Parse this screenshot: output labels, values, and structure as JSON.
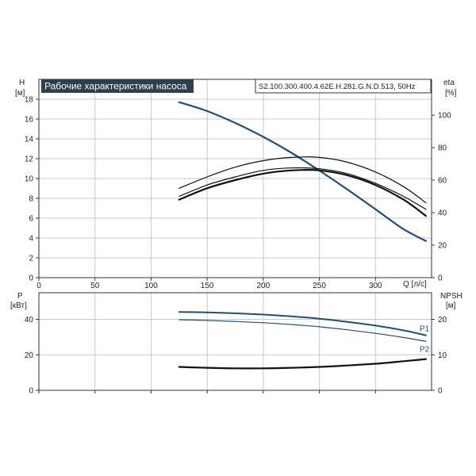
{
  "chart_data": [
    {
      "type": "line",
      "title": "Рабочие характеристики насоса",
      "model_label": "S2.100.300.400.4.62E.H.281.G.N.D.513, 50Hz",
      "left_axis": {
        "label": "H",
        "unit": "[м]",
        "range": [
          0,
          20
        ],
        "ticks": [
          0,
          2,
          4,
          6,
          8,
          10,
          12,
          14,
          16,
          18
        ]
      },
      "right_axis": {
        "label": "eta",
        "unit": "[%]",
        "range": [
          0,
          122
        ],
        "ticks": [
          0,
          20,
          40,
          60,
          80,
          100
        ]
      },
      "x_axis": {
        "label": "Q [л/с]",
        "range": [
          0,
          350
        ],
        "ticks": [
          0,
          50,
          100,
          150,
          200,
          250,
          300
        ]
      },
      "grid": true,
      "series": [
        {
          "axis": "left",
          "color": "#1f4e79",
          "width": 2.2,
          "x": [
            125,
            150,
            175,
            200,
            225,
            250,
            275,
            300,
            325,
            345
          ],
          "y": [
            17.7,
            16.8,
            15.6,
            14.2,
            12.6,
            10.8,
            8.9,
            6.9,
            4.9,
            3.7
          ]
        },
        {
          "axis": "right",
          "color": "#111111",
          "width": 1.2,
          "x": [
            125,
            150,
            175,
            200,
            225,
            250,
            275,
            300,
            325,
            345
          ],
          "y": [
            55,
            62,
            68,
            72,
            74,
            74,
            71,
            65,
            56,
            46
          ]
        },
        {
          "axis": "right",
          "color": "#111111",
          "width": 1.2,
          "x": [
            125,
            150,
            175,
            200,
            225,
            250,
            275,
            300,
            325,
            345
          ],
          "y": [
            50,
            57,
            62,
            66,
            67.5,
            67,
            64,
            58,
            50,
            42
          ]
        },
        {
          "axis": "right",
          "color": "#111111",
          "width": 2.2,
          "x": [
            125,
            150,
            175,
            200,
            225,
            250,
            275,
            300,
            325,
            345
          ],
          "y": [
            48,
            55,
            60,
            64,
            66,
            66,
            63,
            57,
            48,
            38
          ]
        }
      ]
    },
    {
      "type": "line",
      "left_axis": {
        "label": "P",
        "unit": "[кВт]",
        "range": [
          0,
          55
        ],
        "ticks": [
          0,
          20,
          40
        ]
      },
      "right_axis": {
        "label": "NPSH",
        "unit": "[м]",
        "range": [
          0,
          27.5
        ],
        "ticks": [
          0,
          10,
          20
        ]
      },
      "x_axis": {
        "range": [
          0,
          350
        ],
        "ticks": [
          0,
          50,
          100,
          150,
          200,
          250,
          300
        ]
      },
      "grid": true,
      "series": [
        {
          "name": "P1",
          "axis": "left",
          "color": "#1f4e79",
          "width": 2.0,
          "x": [
            125,
            150,
            175,
            200,
            225,
            250,
            275,
            300,
            325,
            345
          ],
          "y": [
            44.2,
            43.9,
            43.4,
            42.7,
            41.7,
            40.4,
            38.6,
            36.5,
            33.8,
            31.0
          ]
        },
        {
          "name": "P2",
          "axis": "left",
          "color": "#1f4e79",
          "width": 1.2,
          "x": [
            125,
            150,
            175,
            200,
            225,
            250,
            275,
            300,
            325,
            345
          ],
          "y": [
            39.8,
            39.4,
            38.8,
            38.1,
            37.1,
            35.8,
            34.1,
            32.1,
            29.8,
            27.6
          ]
        },
        {
          "axis": "right",
          "color": "#111111",
          "width": 2.2,
          "x": [
            125,
            150,
            175,
            200,
            225,
            250,
            275,
            300,
            325,
            345
          ],
          "y": [
            6.6,
            6.35,
            6.2,
            6.2,
            6.35,
            6.6,
            7.0,
            7.5,
            8.2,
            8.8
          ]
        }
      ]
    }
  ]
}
